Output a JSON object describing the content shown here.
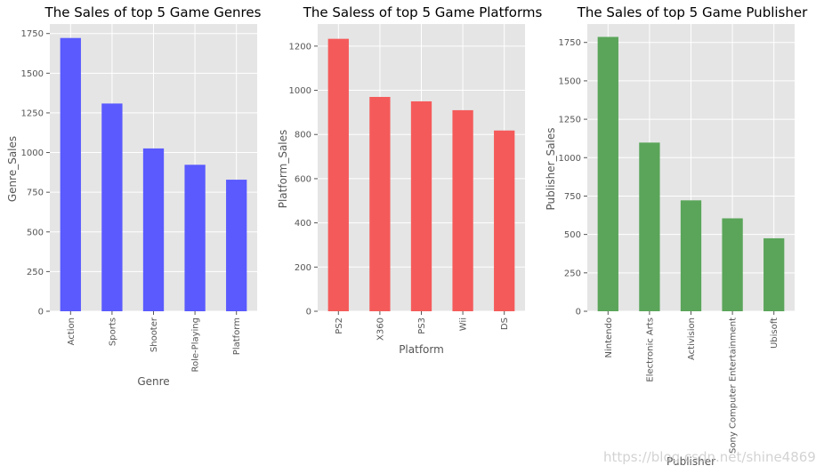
{
  "colors": {
    "panel_bg": "#e5e5e5",
    "grid": "#ffffff",
    "tick": "#555555",
    "genre_bars": "#5a5aff",
    "platform_bars": "#f55a5a",
    "publisher_bars": "#5aa55a"
  },
  "watermark": "https://blog.csdn.net/shine4869",
  "chart_data": [
    {
      "type": "bar",
      "title": "The Sales of top 5 Game Genres",
      "xlabel": "Genre",
      "ylabel": "Genre_Sales",
      "categories": [
        "Action",
        "Sports",
        "Shooter",
        "Role-Playing",
        "Platform"
      ],
      "values": [
        1722,
        1309,
        1026,
        923,
        829
      ],
      "ylim": [
        0,
        1810
      ],
      "yticks": [
        0,
        250,
        500,
        750,
        1000,
        1250,
        1500,
        1750
      ],
      "ytick_labels": [
        "0",
        "250",
        "500",
        "750",
        "1000",
        "1250",
        "1500",
        "1750"
      ],
      "color_key": "genre_bars",
      "grid": true
    },
    {
      "type": "bar",
      "title": "The Saless of top 5 Game Platforms",
      "xlabel": "Platform",
      "ylabel": "Platform_Sales",
      "categories": [
        "PS2",
        "X360",
        "PS3",
        "Wii",
        "DS"
      ],
      "values": [
        1233,
        970,
        950,
        910,
        818
      ],
      "ylim": [
        0,
        1300
      ],
      "yticks": [
        0,
        200,
        400,
        600,
        800,
        1000,
        1200
      ],
      "ytick_labels": [
        "0",
        "200",
        "400",
        "600",
        "800",
        "1000",
        "1200"
      ],
      "color_key": "platform_bars",
      "grid": true
    },
    {
      "type": "bar",
      "title": "The Sales of top 5 Game Publisher",
      "xlabel": "Publisher",
      "ylabel": "Publisher_Sales",
      "categories": [
        "Nintendo",
        "Electronic Arts",
        "Activision",
        "Sony Computer Entertainment",
        "Ubisoft"
      ],
      "values": [
        1786,
        1098,
        722,
        605,
        475
      ],
      "ylim": [
        0,
        1870
      ],
      "yticks": [
        0,
        250,
        500,
        750,
        1000,
        1250,
        1500,
        1750
      ],
      "ytick_labels": [
        "0",
        "250",
        "500",
        "750",
        "1000",
        "1250",
        "1500",
        "1750"
      ],
      "color_key": "publisher_bars",
      "grid": true
    }
  ]
}
